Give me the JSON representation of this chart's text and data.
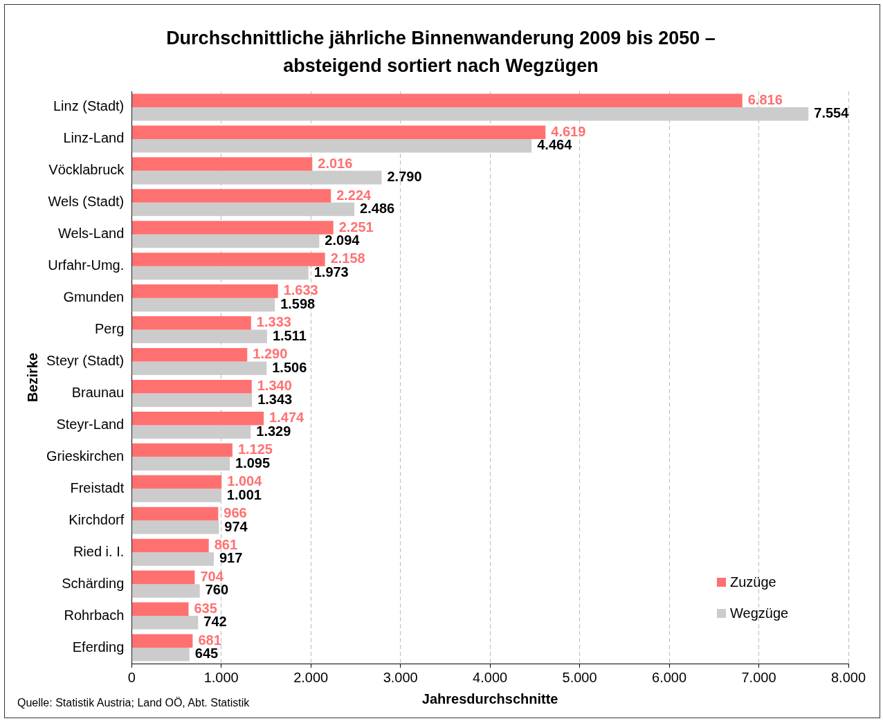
{
  "chart_data": {
    "type": "bar",
    "orientation": "horizontal",
    "title": "Durchschnittliche jährliche Binnenwanderung 2009 bis 2050 – absteigend sortiert nach Wegzügen",
    "xlabel": "Jahresdurchschnitte",
    "ylabel": "Bezirke",
    "categories": [
      "Linz (Stadt)",
      "Linz-Land",
      "Vöcklabruck",
      "Wels (Stadt)",
      "Wels-Land",
      "Urfahr-Umg.",
      "Gmunden",
      "Perg",
      "Steyr (Stadt)",
      "Braunau",
      "Steyr-Land",
      "Grieskirchen",
      "Freistadt",
      "Kirchdorf",
      "Ried i. I.",
      "Schärding",
      "Rohrbach",
      "Eferding"
    ],
    "series": [
      {
        "name": "Zuzüge",
        "color": "#ff7171",
        "values": [
          6816,
          4619,
          2016,
          2224,
          2251,
          2158,
          1633,
          1333,
          1290,
          1340,
          1474,
          1125,
          1004,
          966,
          861,
          704,
          635,
          681
        ],
        "value_labels": [
          "6.816",
          "4.619",
          "2.016",
          "2.224",
          "2.251",
          "2.158",
          "1.633",
          "1.333",
          "1.290",
          "1.340",
          "1.474",
          "1.125",
          "1.004",
          "966",
          "861",
          "704",
          "635",
          "681"
        ]
      },
      {
        "name": "Wegzüge",
        "color": "#cccccc",
        "values": [
          7554,
          4464,
          2790,
          2486,
          2094,
          1973,
          1598,
          1511,
          1506,
          1343,
          1329,
          1095,
          1001,
          974,
          917,
          760,
          742,
          645
        ],
        "value_labels": [
          "7.554",
          "4.464",
          "2.790",
          "2.486",
          "2.094",
          "1.973",
          "1.598",
          "1.511",
          "1.506",
          "1.343",
          "1.329",
          "1.095",
          "1.001",
          "974",
          "917",
          "760",
          "742",
          "645"
        ]
      }
    ],
    "xlim": [
      0,
      8000
    ],
    "xticks": [
      0,
      {
        "value": 1000,
        "label": "1.000"
      },
      {
        "value": 2000,
        "label": "2.000"
      },
      {
        "value": 3000,
        "label": "3.000"
      },
      {
        "value": 4000,
        "label": "4.000"
      },
      {
        "value": 5000,
        "label": "5.000"
      },
      {
        "value": 6000,
        "label": "6.000"
      },
      {
        "value": 7000,
        "label": "7.000"
      },
      {
        "value": 8000,
        "label": "8.000"
      }
    ],
    "grid": "x",
    "legend": "bottom right",
    "annotations": [
      "Quelle: Statistik Austria; Land OÖ, Abt. Statistik"
    ]
  }
}
